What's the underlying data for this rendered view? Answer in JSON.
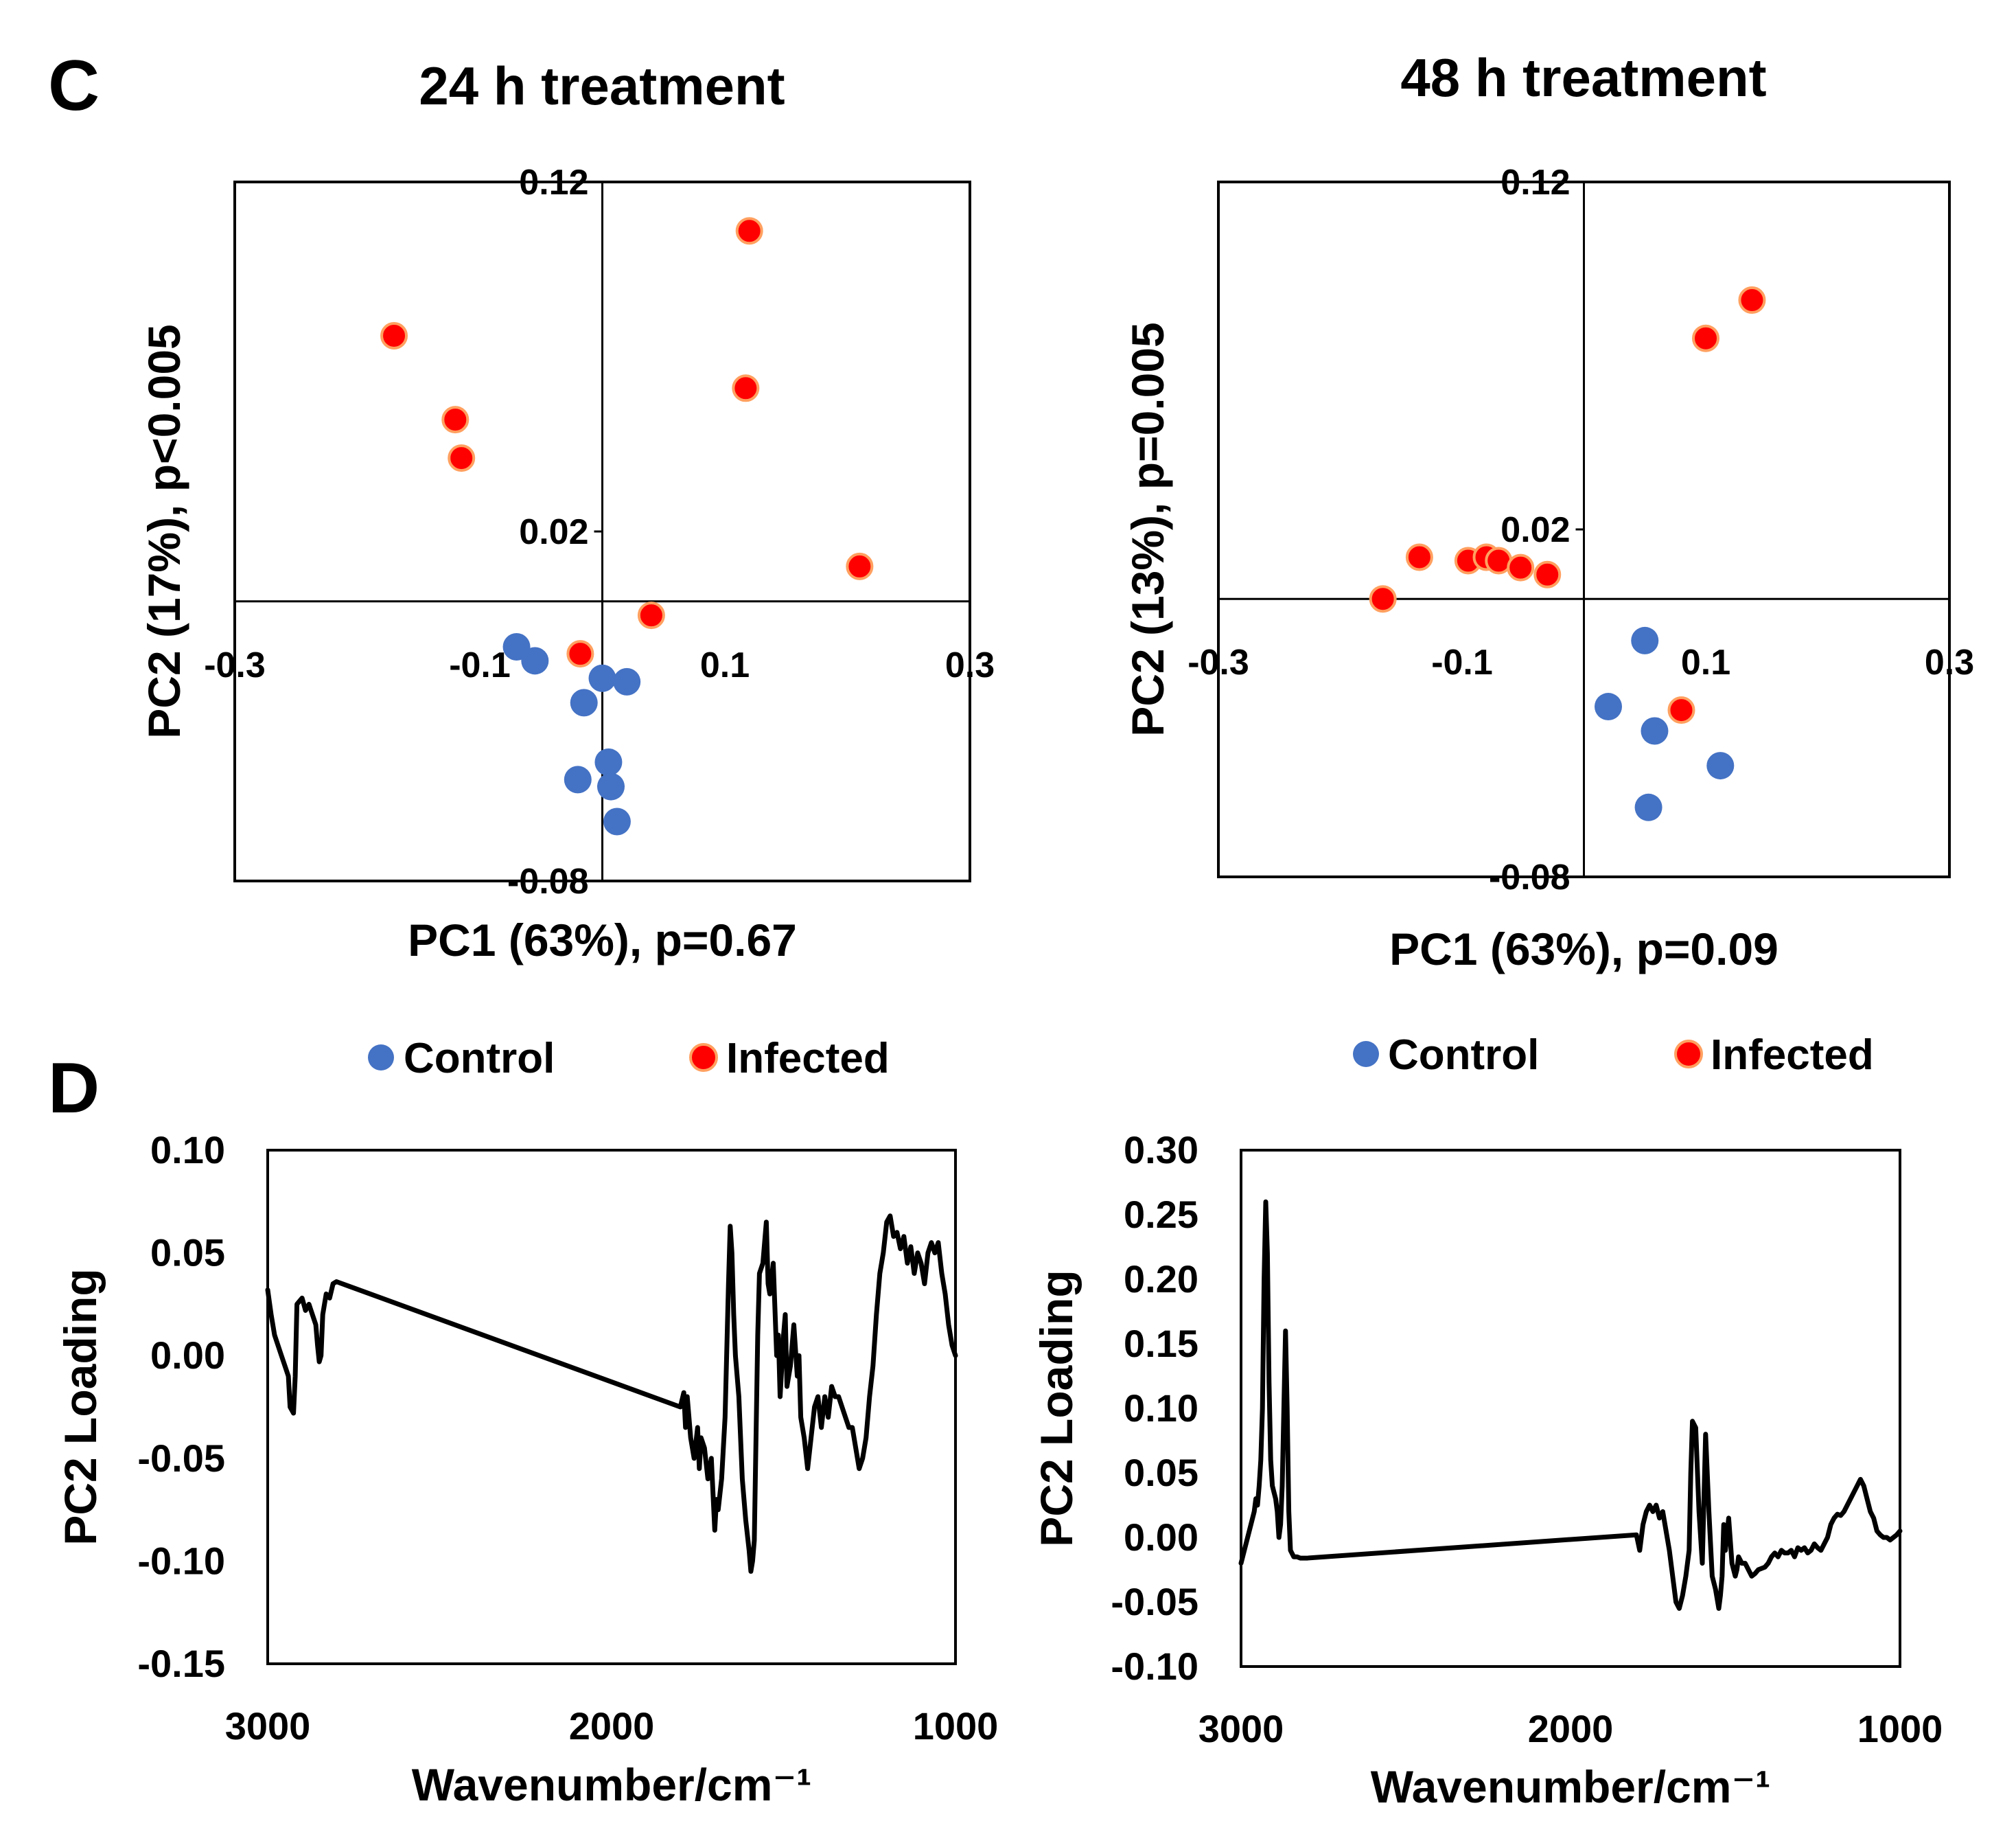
{
  "panels": {
    "c_letter": "C",
    "d_letter": "D"
  },
  "legend": {
    "control_label": "Control",
    "infected_label": "Infected"
  },
  "colors": {
    "control": "#4472C4",
    "infected": "#FF0000",
    "infected_edge": "#FFA060",
    "line": "#000000"
  },
  "chart_data": [
    {
      "id": "pca24",
      "type": "scatter",
      "title": "24 h treatment",
      "xlabel": "PC1 (63%), p=0.67",
      "ylabel": "PC2 (17%), p<0.005",
      "xlim": [
        -0.3,
        0.3
      ],
      "ylim": [
        -0.08,
        0.12
      ],
      "x_ticks": [
        "-0.3",
        "-0.1",
        "0.1",
        "0.3"
      ],
      "x_tick_values": [
        -0.3,
        -0.1,
        0.1,
        0.3
      ],
      "y_ticks": [
        "0.12",
        "0.02",
        "-0.08"
      ],
      "y_tick_values": [
        0.12,
        0.02,
        -0.08
      ],
      "series": [
        {
          "name": "Control",
          "points": [
            [
              -0.07,
              -0.013
            ],
            [
              -0.055,
              -0.017
            ],
            [
              0.0,
              -0.022
            ],
            [
              0.02,
              -0.023
            ],
            [
              -0.015,
              -0.029
            ],
            [
              0.005,
              -0.046
            ],
            [
              -0.02,
              -0.051
            ],
            [
              0.007,
              -0.053
            ],
            [
              0.012,
              -0.063
            ]
          ]
        },
        {
          "name": "Infected",
          "points": [
            [
              0.12,
              0.106
            ],
            [
              -0.17,
              0.076
            ],
            [
              0.117,
              0.061
            ],
            [
              -0.12,
              0.052
            ],
            [
              -0.115,
              0.041
            ],
            [
              0.21,
              0.01
            ],
            [
              0.04,
              -0.004
            ],
            [
              -0.018,
              -0.015
            ]
          ]
        }
      ]
    },
    {
      "id": "pca48",
      "type": "scatter",
      "title": "48 h treatment",
      "xlabel": "PC1 (63%), p=0.09",
      "ylabel": "PC2 (13%), p=0.005",
      "xlim": [
        -0.3,
        0.3
      ],
      "ylim": [
        -0.08,
        0.12
      ],
      "x_ticks": [
        "-0.3",
        "-0.1",
        "0.1",
        "0.3"
      ],
      "x_tick_values": [
        -0.3,
        -0.1,
        0.1,
        0.3
      ],
      "y_ticks": [
        "0.12",
        "0.02",
        "-0.08"
      ],
      "y_tick_values": [
        0.12,
        0.02,
        -0.08
      ],
      "series": [
        {
          "name": "Control",
          "points": [
            [
              0.05,
              -0.012
            ],
            [
              0.02,
              -0.031
            ],
            [
              0.058,
              -0.038
            ],
            [
              0.112,
              -0.048
            ],
            [
              0.053,
              -0.06
            ]
          ]
        },
        {
          "name": "Infected",
          "points": [
            [
              0.138,
              0.086
            ],
            [
              0.1,
              0.075
            ],
            [
              -0.135,
              0.012
            ],
            [
              -0.095,
              0.011
            ],
            [
              -0.08,
              0.012
            ],
            [
              -0.07,
              0.011
            ],
            [
              -0.052,
              0.009
            ],
            [
              -0.03,
              0.007
            ],
            [
              -0.165,
              0.0
            ],
            [
              0.08,
              -0.032
            ]
          ]
        }
      ]
    },
    {
      "id": "load24",
      "type": "line",
      "xlabel": "Wavenumber/cm⁻¹",
      "ylabel": "PC2 Loading",
      "xlim": [
        3000,
        1000
      ],
      "ylim": [
        -0.15,
        0.1
      ],
      "x_ticks": [
        "3000",
        "2000",
        "1000"
      ],
      "x_tick_values": [
        3000,
        2000,
        1000
      ],
      "y_ticks": [
        "0.10",
        "0.05",
        "0.00",
        "-0.05",
        "-0.10",
        "-0.15"
      ],
      "y_tick_values": [
        0.1,
        0.05,
        0.0,
        -0.05,
        -0.1,
        -0.15
      ],
      "x": [
        3000,
        2990,
        2980,
        2970,
        2960,
        2950,
        2940,
        2935,
        2925,
        2920,
        2915,
        2900,
        2890,
        2880,
        2870,
        2860,
        2855,
        2850,
        2845,
        2840,
        2830,
        2820,
        2810,
        2800,
        1800,
        1790,
        1785,
        1780,
        1770,
        1760,
        1750,
        1745,
        1740,
        1730,
        1720,
        1710,
        1700,
        1695,
        1690,
        1680,
        1670,
        1660,
        1655,
        1650,
        1645,
        1640,
        1630,
        1620,
        1610,
        1600,
        1595,
        1590,
        1585,
        1580,
        1575,
        1570,
        1560,
        1550,
        1545,
        1540,
        1530,
        1520,
        1515,
        1510,
        1500,
        1495,
        1490,
        1480,
        1470,
        1460,
        1455,
        1450,
        1440,
        1430,
        1420,
        1410,
        1400,
        1390,
        1380,
        1370,
        1360,
        1350,
        1340,
        1330,
        1320,
        1310,
        1300,
        1290,
        1280,
        1270,
        1260,
        1250,
        1240,
        1230,
        1220,
        1210,
        1200,
        1190,
        1180,
        1170,
        1160,
        1150,
        1140,
        1130,
        1120,
        1110,
        1100,
        1090,
        1080,
        1070,
        1060,
        1050,
        1040,
        1030,
        1020,
        1010,
        1000
      ],
      "y": [
        0.032,
        0.02,
        0.01,
        0.005,
        0.0,
        -0.005,
        -0.01,
        -0.025,
        -0.028,
        -0.01,
        0.025,
        0.028,
        0.022,
        0.025,
        0.02,
        0.015,
        0.005,
        -0.003,
        0.0,
        0.02,
        0.03,
        0.028,
        0.035,
        0.036,
        -0.025,
        -0.018,
        -0.035,
        -0.02,
        -0.04,
        -0.05,
        -0.035,
        -0.055,
        -0.04,
        -0.045,
        -0.06,
        -0.05,
        -0.085,
        -0.07,
        -0.075,
        -0.06,
        -0.03,
        0.035,
        0.063,
        0.05,
        0.02,
        0.0,
        -0.02,
        -0.06,
        -0.08,
        -0.095,
        -0.105,
        -0.1,
        -0.09,
        -0.04,
        0.01,
        0.04,
        0.045,
        0.065,
        0.035,
        0.03,
        0.045,
        0.0,
        0.01,
        -0.02,
        0.01,
        0.02,
        -0.015,
        -0.005,
        0.015,
        -0.01,
        0.0,
        -0.03,
        -0.04,
        -0.055,
        -0.04,
        -0.025,
        -0.02,
        -0.035,
        -0.02,
        -0.03,
        -0.015,
        -0.02,
        -0.02,
        -0.025,
        -0.03,
        -0.035,
        -0.035,
        -0.045,
        -0.055,
        -0.05,
        -0.04,
        -0.02,
        -0.005,
        0.02,
        0.04,
        0.05,
        0.065,
        0.068,
        0.058,
        0.06,
        0.052,
        0.058,
        0.045,
        0.053,
        0.04,
        0.05,
        0.045,
        0.035,
        0.05,
        0.055,
        0.05,
        0.055,
        0.04,
        0.03,
        0.015,
        0.005,
        0.0
      ]
    },
    {
      "id": "load48",
      "type": "line",
      "xlabel": "Wavenumber/cm⁻¹",
      "ylabel": "PC2 Loading",
      "xlim": [
        3000,
        1000
      ],
      "ylim": [
        -0.1,
        0.3
      ],
      "x_ticks": [
        "3000",
        "2000",
        "1000"
      ],
      "x_tick_values": [
        3000,
        2000,
        1000
      ],
      "y_ticks": [
        "0.30",
        "0.25",
        "0.20",
        "0.15",
        "0.10",
        "0.05",
        "0.00",
        "-0.05",
        "-0.10"
      ],
      "y_tick_values": [
        0.3,
        0.25,
        0.2,
        0.15,
        0.1,
        0.05,
        0.0,
        -0.05,
        -0.1
      ],
      "x": [
        3000,
        2990,
        2980,
        2970,
        2960,
        2955,
        2950,
        2945,
        2940,
        2935,
        2930,
        2925,
        2920,
        2915,
        2910,
        2905,
        2900,
        2895,
        2890,
        2885,
        2880,
        2875,
        2870,
        2865,
        2860,
        2855,
        2850,
        2840,
        2830,
        2820,
        2810,
        2800,
        1800,
        1790,
        1780,
        1770,
        1760,
        1750,
        1740,
        1730,
        1720,
        1710,
        1700,
        1690,
        1680,
        1670,
        1660,
        1650,
        1640,
        1635,
        1630,
        1620,
        1610,
        1600,
        1590,
        1580,
        1570,
        1560,
        1550,
        1545,
        1540,
        1535,
        1530,
        1520,
        1510,
        1500,
        1495,
        1490,
        1480,
        1470,
        1460,
        1450,
        1440,
        1430,
        1420,
        1410,
        1400,
        1390,
        1380,
        1370,
        1360,
        1350,
        1340,
        1330,
        1320,
        1310,
        1300,
        1290,
        1280,
        1270,
        1260,
        1250,
        1240,
        1230,
        1220,
        1210,
        1200,
        1190,
        1180,
        1170,
        1160,
        1150,
        1140,
        1130,
        1120,
        1110,
        1100,
        1090,
        1080,
        1070,
        1060,
        1050,
        1040,
        1030,
        1020,
        1010,
        1000
      ],
      "y": [
        -0.02,
        -0.01,
        0.0,
        0.01,
        0.02,
        0.03,
        0.025,
        0.04,
        0.06,
        0.1,
        0.2,
        0.26,
        0.22,
        0.12,
        0.06,
        0.04,
        0.035,
        0.03,
        0.02,
        0.0,
        0.01,
        0.04,
        0.1,
        0.16,
        0.1,
        0.02,
        -0.01,
        -0.015,
        -0.015,
        -0.016,
        -0.016,
        -0.016,
        0.002,
        -0.01,
        0.01,
        0.02,
        0.025,
        0.02,
        0.025,
        0.015,
        0.02,
        0.005,
        -0.01,
        -0.03,
        -0.05,
        -0.055,
        -0.045,
        -0.03,
        -0.01,
        0.05,
        0.09,
        0.085,
        0.02,
        -0.02,
        0.08,
        0.02,
        -0.03,
        -0.04,
        -0.055,
        -0.045,
        -0.03,
        0.01,
        -0.01,
        0.015,
        -0.02,
        -0.03,
        -0.025,
        -0.015,
        -0.02,
        -0.02,
        -0.025,
        -0.03,
        -0.028,
        -0.025,
        -0.024,
        -0.023,
        -0.02,
        -0.015,
        -0.012,
        -0.015,
        -0.01,
        -0.012,
        -0.012,
        -0.01,
        -0.015,
        -0.008,
        -0.01,
        -0.008,
        -0.012,
        -0.01,
        -0.005,
        -0.008,
        -0.01,
        -0.005,
        0.0,
        0.01,
        0.015,
        0.018,
        0.017,
        0.02,
        0.025,
        0.03,
        0.035,
        0.04,
        0.045,
        0.04,
        0.03,
        0.02,
        0.015,
        0.005,
        0.002,
        0.0,
        0.0,
        -0.002,
        0.0,
        0.002,
        0.005
      ]
    }
  ]
}
